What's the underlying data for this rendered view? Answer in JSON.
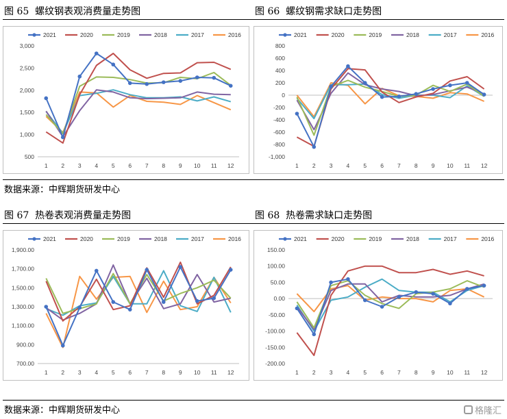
{
  "colors": {
    "2021": "#4472c4",
    "2020": "#c0504d",
    "2019": "#9bbb59",
    "2018": "#8064a2",
    "2017": "#4bacc6",
    "2016": "#f79646"
  },
  "source_label": "数据来源：中辉期货研发中心",
  "watermark": "格隆汇",
  "chart_data": [
    {
      "figure": "图 65",
      "title": "螺纹钢表观消费量走势图",
      "type": "line",
      "x": [
        1,
        2,
        3,
        4,
        5,
        6,
        7,
        8,
        9,
        10,
        11,
        12
      ],
      "ylim": [
        500,
        3000
      ],
      "yticks": [
        "500",
        "1,000",
        "1,500",
        "2,000",
        "2,500",
        "3,000"
      ],
      "series": [
        {
          "name": "2021",
          "values": [
            1820,
            940,
            2310,
            2830,
            2580,
            2160,
            2140,
            2180,
            2210,
            2290,
            2280,
            2100
          ]
        },
        {
          "name": "2020",
          "values": [
            1060,
            810,
            1900,
            2560,
            2830,
            2460,
            2270,
            2380,
            2390,
            2620,
            2630,
            2470
          ]
        },
        {
          "name": "2019",
          "values": [
            1450,
            1020,
            2090,
            2300,
            2290,
            2240,
            2160,
            2170,
            2290,
            2260,
            2400,
            2110
          ]
        },
        {
          "name": "2018",
          "values": [
            1530,
            950,
            1540,
            2010,
            1960,
            1830,
            1810,
            1820,
            1830,
            1960,
            1910,
            1900
          ]
        },
        {
          "name": "2017",
          "values": [
            1520,
            1030,
            1880,
            1930,
            2010,
            1900,
            1830,
            1830,
            1850,
            1760,
            1850,
            1740
          ]
        },
        {
          "name": "2016",
          "values": [
            1410,
            1050,
            1960,
            1940,
            1620,
            1880,
            1750,
            1730,
            1680,
            1880,
            1720,
            1560
          ]
        }
      ]
    },
    {
      "figure": "图 66",
      "title": "螺纹钢需求缺口走势图",
      "type": "line",
      "x": [
        1,
        2,
        3,
        4,
        5,
        6,
        7,
        8,
        9,
        10,
        11,
        12
      ],
      "ylim": [
        -1000,
        800
      ],
      "yticks": [
        "-1,000",
        "-800",
        "-600",
        "-400",
        "-200",
        "0",
        "200",
        "400",
        "600",
        "800"
      ],
      "series": [
        {
          "name": "2021",
          "values": [
            -300,
            -840,
            140,
            470,
            200,
            -30,
            -20,
            20,
            100,
            160,
            200,
            10
          ]
        },
        {
          "name": "2020",
          "values": [
            -680,
            -830,
            100,
            430,
            410,
            50,
            -120,
            -30,
            30,
            230,
            300,
            100
          ]
        },
        {
          "name": "2019",
          "values": [
            -30,
            -650,
            140,
            240,
            130,
            60,
            -20,
            0,
            160,
            60,
            180,
            -20
          ]
        },
        {
          "name": "2018",
          "values": [
            -80,
            -560,
            30,
            360,
            170,
            100,
            60,
            -10,
            10,
            70,
            130,
            20
          ]
        },
        {
          "name": "2017",
          "values": [
            -50,
            -380,
            170,
            170,
            180,
            10,
            -50,
            0,
            0,
            -40,
            150,
            -20
          ]
        },
        {
          "name": "2016",
          "values": [
            0,
            -350,
            200,
            160,
            -140,
            110,
            -10,
            -20,
            -50,
            40,
            20,
            -100
          ]
        }
      ]
    },
    {
      "figure": "图 67",
      "title": "热卷表观消费量走势图",
      "type": "line",
      "x": [
        1,
        2,
        3,
        4,
        5,
        6,
        7,
        8,
        9,
        10,
        11,
        12
      ],
      "ylim": [
        700,
        1900
      ],
      "yticks": [
        "700.00",
        "900.00",
        "1,100.00",
        "1,300.00",
        "1,500.00",
        "1,700.00",
        "1,900.00"
      ],
      "series": [
        {
          "name": "2021",
          "values": [
            1300,
            890,
            1290,
            1680,
            1350,
            1270,
            1690,
            1350,
            1720,
            1360,
            1390,
            1690
          ]
        },
        {
          "name": "2020",
          "values": [
            1570,
            1150,
            1300,
            1590,
            1270,
            1310,
            1710,
            1400,
            1770,
            1330,
            1420,
            1720
          ]
        },
        {
          "name": "2019",
          "values": [
            1600,
            1230,
            1280,
            1330,
            1650,
            1330,
            1640,
            1360,
            1440,
            1500,
            1580,
            1390
          ]
        },
        {
          "name": "2018",
          "values": [
            1290,
            1160,
            1230,
            1330,
            1740,
            1330,
            1600,
            1280,
            1330,
            1640,
            1350,
            1390
          ]
        },
        {
          "name": "2017",
          "values": [
            1280,
            1210,
            1310,
            1340,
            1620,
            1330,
            1330,
            1680,
            1310,
            1250,
            1610,
            1240
          ]
        },
        {
          "name": "2016",
          "values": [
            1230,
            870,
            1620,
            1380,
            1610,
            1620,
            1240,
            1570,
            1270,
            1300,
            1610,
            1340
          ]
        }
      ]
    },
    {
      "figure": "图 68",
      "title": "热卷需求缺口走势图",
      "type": "line",
      "x": [
        1,
        2,
        3,
        4,
        5,
        6,
        7,
        8,
        9,
        10,
        11,
        12
      ],
      "ylim": [
        -200,
        150
      ],
      "yticks": [
        "-200.00",
        "-150.00",
        "-100.00",
        "-50.00",
        "0.00",
        "50.00",
        "100.00",
        "150.00"
      ],
      "series": [
        {
          "name": "2021",
          "values": [
            -30,
            -110,
            50,
            60,
            -5,
            -25,
            5,
            20,
            15,
            -15,
            30,
            40
          ]
        },
        {
          "name": "2020",
          "values": [
            -105,
            -175,
            10,
            85,
            100,
            100,
            80,
            80,
            90,
            75,
            85,
            70
          ]
        },
        {
          "name": "2019",
          "values": [
            -10,
            -90,
            40,
            55,
            10,
            -15,
            -30,
            15,
            20,
            30,
            55,
            35
          ]
        },
        {
          "name": "2018",
          "values": [
            -25,
            -95,
            25,
            45,
            45,
            -10,
            10,
            5,
            5,
            10,
            30,
            45
          ]
        },
        {
          "name": "2017",
          "values": [
            -20,
            -100,
            -5,
            5,
            35,
            60,
            25,
            20,
            20,
            -10,
            25,
            40
          ]
        },
        {
          "name": "2016",
          "values": [
            15,
            -40,
            30,
            40,
            -5,
            5,
            0,
            0,
            -10,
            25,
            30,
            5
          ]
        }
      ]
    }
  ]
}
